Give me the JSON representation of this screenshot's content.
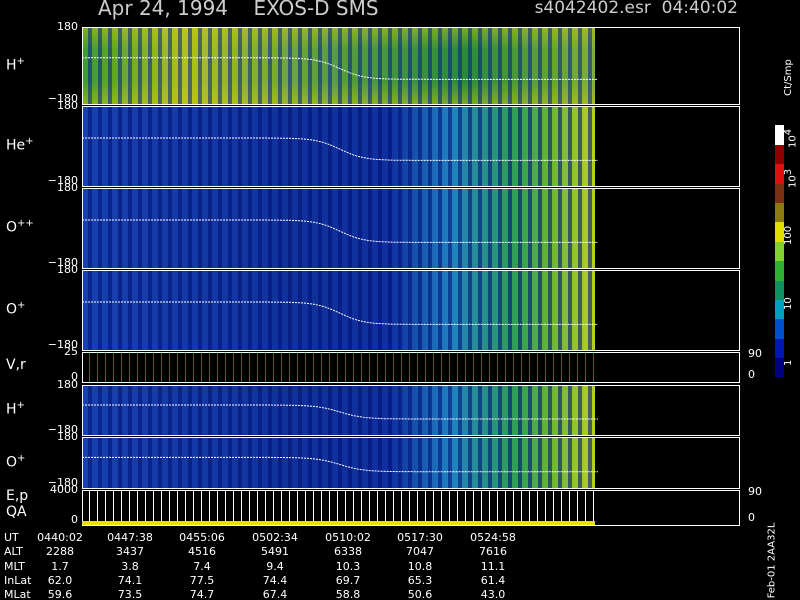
{
  "header": {
    "title": "Apr 24, 1994    EXOS-D SMS",
    "file": "s4042402.esr  04:40:02"
  },
  "panels": [
    {
      "label": "H",
      "sup": "+",
      "top": "180",
      "bottom": "−180"
    },
    {
      "label": "He",
      "sup": "+",
      "top": "180",
      "bottom": "−180"
    },
    {
      "label": "O",
      "sup": "++",
      "top": "180",
      "bottom": "−180"
    },
    {
      "label": "O",
      "sup": "+",
      "top": "180",
      "bottom": "−180"
    },
    {
      "label": "V,r",
      "top": "25",
      "bottom": "0",
      "right_top": "90",
      "right_bottom": "0"
    },
    {
      "label": "H",
      "sup": "+",
      "top": "180",
      "bottom": "−180"
    },
    {
      "label": "O",
      "sup": "+",
      "top": "180",
      "bottom": "−180"
    },
    {
      "label": "E,p",
      "label2": "QA",
      "top": "4000",
      "bottom": "0",
      "right_top": "90",
      "right_bottom": "0"
    }
  ],
  "colorbar": {
    "unit": "Ct/Smp",
    "ticks": [
      {
        "base": "10",
        "exp": "4"
      },
      {
        "base": "10",
        "exp": "3"
      },
      {
        "base": "100"
      },
      {
        "base": "10"
      },
      {
        "base": "1"
      }
    ]
  },
  "table": {
    "rows": [
      [
        "UT",
        "0440:02",
        "0447:38",
        "0455:06",
        "0502:34",
        "0510:02",
        "0517:30",
        "0524:58"
      ],
      [
        "ALT",
        "2288",
        "3437",
        "4516",
        "5491",
        "6338",
        "7047",
        "7616"
      ],
      [
        "MLT",
        "1.7",
        "3.8",
        "7.4",
        "9.4",
        "10.3",
        "10.8",
        "11.1"
      ],
      [
        "InLat",
        "62.0",
        "74.1",
        "77.5",
        "74.4",
        "69.7",
        "65.3",
        "61.4"
      ],
      [
        "MLat",
        "59.6",
        "73.5",
        "74.7",
        "67.4",
        "58.8",
        "50.6",
        "43.0"
      ]
    ]
  },
  "footer": "Feb-01 2AA32L"
}
